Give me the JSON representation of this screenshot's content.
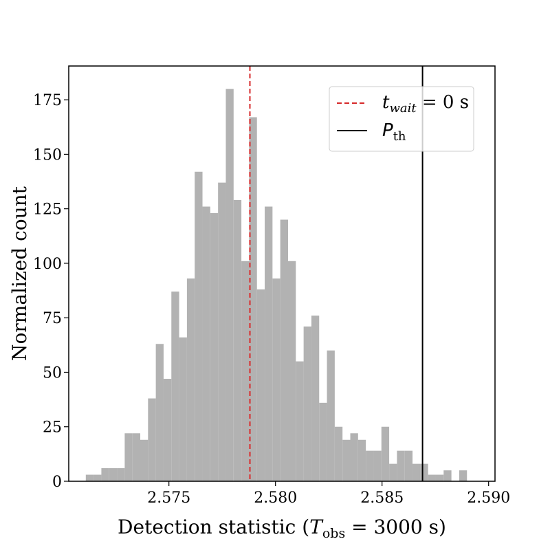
{
  "chart_data": {
    "type": "bar",
    "xlabel": "Detection statistic (T_obs = 3000 s)",
    "ylabel": "Normalized count",
    "xlim": [
      2.5703,
      2.5903
    ],
    "ylim": [
      0,
      190.5
    ],
    "xticks": [
      "2.575",
      "2.580",
      "2.585",
      "2.590"
    ],
    "xtick_values": [
      2.575,
      2.58,
      2.585,
      2.59
    ],
    "yticks": [
      "0",
      "25",
      "50",
      "75",
      "100",
      "125",
      "150",
      "175"
    ],
    "ytick_values": [
      0,
      25,
      50,
      75,
      100,
      125,
      150,
      175
    ],
    "bar_color": "#b2b2b2",
    "bins": {
      "start": 2.5711,
      "width": 0.000365,
      "values": [
        3,
        3,
        6,
        6,
        6,
        22,
        22,
        19,
        38,
        63,
        47,
        87,
        66,
        93,
        142,
        126,
        123,
        137,
        180,
        129,
        101,
        167,
        88,
        126,
        93,
        120,
        101,
        55,
        71,
        76,
        36,
        60,
        25,
        19,
        22,
        19,
        14,
        14,
        25,
        8,
        14,
        14,
        8,
        8,
        3,
        3,
        5,
        0,
        5
      ]
    },
    "reference_lines": [
      {
        "name": "t_wait = 0 s",
        "x": 2.5788,
        "color": "#d62728",
        "style": "dashed"
      },
      {
        "name": "P_th",
        "x": 2.5869,
        "color": "#000000",
        "style": "solid"
      }
    ],
    "legend": {
      "position": "upper-right",
      "entries": [
        {
          "label_main": "t",
          "label_sub": "wait",
          "label_rest": " = 0 s",
          "color": "#d62728",
          "style": "dashed"
        },
        {
          "label_main": "P",
          "label_sub": "th",
          "label_rest": "",
          "color": "#000000",
          "style": "solid"
        }
      ]
    },
    "xlabel_parts": {
      "pre": "Detection statistic (",
      "main": "T",
      "sub": "obs",
      "post": " = 3000 s)"
    }
  }
}
